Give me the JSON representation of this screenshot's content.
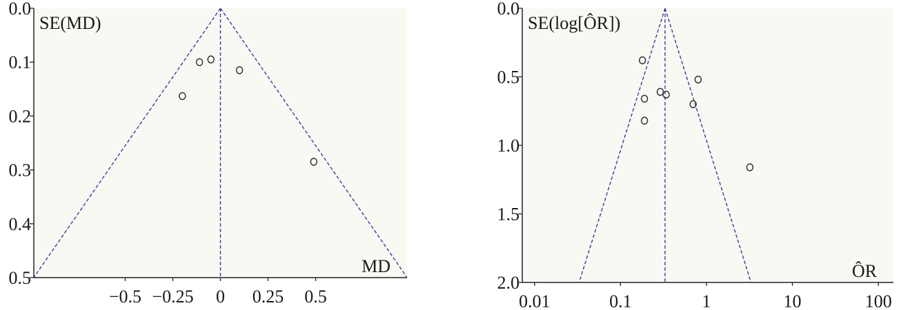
{
  "colors": {
    "plot_background": "#f9f8f2",
    "axis": "#222222",
    "funnel_line": "#3a3aa8",
    "points": "#333333"
  },
  "chart_data": [
    {
      "type": "scatter",
      "subtype": "funnel-plot",
      "ylabel": "SE(MD)",
      "xlabel": "MD",
      "xlim": [
        -0.98,
        0.98
      ],
      "ylim": [
        0.5,
        0.0
      ],
      "x_ticks": [
        {
          "value": -0.5,
          "label": "−0.5"
        },
        {
          "value": -0.25,
          "label": "−0.25"
        },
        {
          "value": 0,
          "label": "0"
        },
        {
          "value": 0.25,
          "label": "0.25"
        },
        {
          "value": 0.5,
          "label": "0.5"
        }
      ],
      "y_ticks": [
        {
          "value": 0.0,
          "label": "0.0"
        },
        {
          "value": 0.1,
          "label": "0.1"
        },
        {
          "value": 0.2,
          "label": "0.2"
        },
        {
          "value": 0.3,
          "label": "0.3"
        },
        {
          "value": 0.4,
          "label": "0.4"
        },
        {
          "value": 0.5,
          "label": "0.5"
        }
      ],
      "pooled_estimate": 0,
      "funnel_slope_se_per_unit": 0.51,
      "points": [
        {
          "x": -0.11,
          "y": 0.1
        },
        {
          "x": -0.05,
          "y": 0.095
        },
        {
          "x": 0.1,
          "y": 0.115
        },
        {
          "x": -0.2,
          "y": 0.163
        },
        {
          "x": 0.49,
          "y": 0.285
        }
      ],
      "grid": false
    },
    {
      "type": "scatter",
      "subtype": "funnel-plot",
      "ylabel": "SE(log[ÔR])",
      "xlabel": "ÔR",
      "x_scale": "log",
      "xlim": [
        0.0072,
        150
      ],
      "ylim": [
        2.0,
        0.0
      ],
      "x_ticks": [
        {
          "value": 0.01,
          "label": "0.01"
        },
        {
          "value": 0.1,
          "label": "0.1"
        },
        {
          "value": 1,
          "label": "1"
        },
        {
          "value": 10,
          "label": "10"
        },
        {
          "value": 100,
          "label": "100"
        }
      ],
      "y_ticks": [
        {
          "value": 0.0,
          "label": "0.0"
        },
        {
          "value": 0.5,
          "label": "0.5"
        },
        {
          "value": 1.0,
          "label": "1.0"
        },
        {
          "value": 1.5,
          "label": "1.5"
        },
        {
          "value": 2.0,
          "label": "2.0"
        }
      ],
      "pooled_estimate": 0.33,
      "funnel_slope_se_per_log10": 2.0,
      "points": [
        {
          "x": 0.18,
          "y": 0.38
        },
        {
          "x": 0.19,
          "y": 0.66
        },
        {
          "x": 0.19,
          "y": 0.82
        },
        {
          "x": 0.29,
          "y": 0.61
        },
        {
          "x": 0.34,
          "y": 0.63
        },
        {
          "x": 0.8,
          "y": 0.52
        },
        {
          "x": 0.7,
          "y": 0.7
        },
        {
          "x": 3.2,
          "y": 1.16
        }
      ],
      "grid": false
    }
  ]
}
